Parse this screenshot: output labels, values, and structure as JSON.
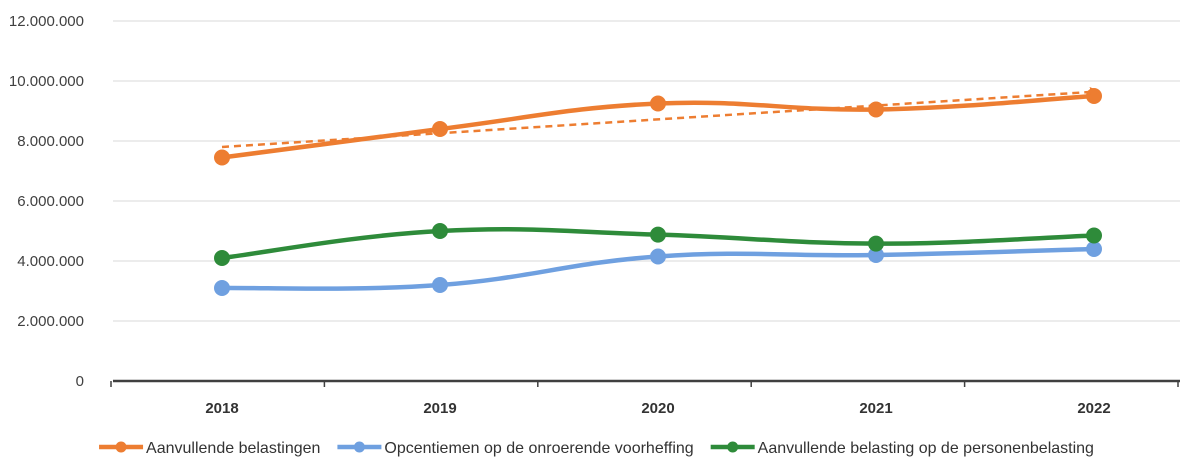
{
  "chart_data": {
    "type": "line",
    "title": "",
    "xlabel": "",
    "ylabel": "",
    "categories": [
      "2018",
      "2019",
      "2020",
      "2021",
      "2022"
    ],
    "y_ticks": [
      "0",
      "2.000.000",
      "4.000.000",
      "6.000.000",
      "8.000.000",
      "10.000.000",
      "12.000.000"
    ],
    "ylim": [
      0,
      12000000
    ],
    "grid": true,
    "legend_position": "bottom",
    "series": [
      {
        "name": "Aanvullende belastingen",
        "color": "#ED7D31",
        "values": [
          7450000,
          8400000,
          9250000,
          9050000,
          9500000
        ]
      },
      {
        "name": "Opcentiemen op de onroerende voorheffing",
        "color": "#6FA0E0",
        "values": [
          3100000,
          3200000,
          4150000,
          4200000,
          4400000
        ]
      },
      {
        "name": "Aanvullende belasting op de personenbelasting",
        "color": "#2E8B3A",
        "values": [
          4100000,
          5000000,
          4880000,
          4580000,
          4850000
        ]
      }
    ],
    "trendline": {
      "series": "Aanvullende belastingen",
      "style": "dashed",
      "color": "#ED7D31",
      "start_value": 7800000,
      "end_value": 9650000
    }
  }
}
